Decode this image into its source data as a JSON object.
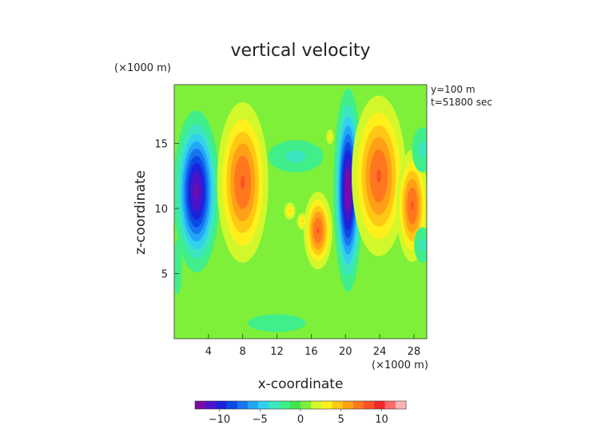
{
  "chart_data": {
    "type": "heatmap",
    "title": "vertical velocity",
    "xlabel": "x-coordinate",
    "ylabel": "z-coordinate",
    "x_unit": "(×1000 m)",
    "y_unit": "(×1000 m)",
    "annotations": [
      "y=100 m",
      "t=51800 sec"
    ],
    "xlim": [
      0,
      29.5
    ],
    "ylim": [
      0,
      19.5
    ],
    "x_ticks": [
      4,
      8,
      12,
      16,
      20,
      24,
      28
    ],
    "y_ticks": [
      5,
      10,
      15
    ],
    "colorbar": {
      "min": -13,
      "max": 13,
      "ticks": [
        -10,
        -5,
        0,
        5,
        10
      ],
      "colors": [
        "#7a0aa8",
        "#4b14c8",
        "#1c22dc",
        "#0a4ae6",
        "#1676f0",
        "#22a6f6",
        "#33d0ee",
        "#3ce6c0",
        "#40ee8a",
        "#3ee64e",
        "#7ef03a",
        "#d2f82c",
        "#fff01c",
        "#ffc814",
        "#ffa016",
        "#ff781e",
        "#ff5028",
        "#f02828",
        "#ff6a6a",
        "#ffb4b4"
      ]
    },
    "features": [
      {
        "x": 2.6,
        "z": 11.3,
        "value": -12,
        "sx": 1.3,
        "sz": 3.0
      },
      {
        "x": 8.0,
        "z": 12.0,
        "value": 8,
        "sx": 1.6,
        "sz": 3.3
      },
      {
        "x": 20.3,
        "z": 11.4,
        "value": -13,
        "sx": 0.8,
        "sz": 3.7
      },
      {
        "x": 23.9,
        "z": 12.5,
        "value": 8,
        "sx": 1.7,
        "sz": 3.3
      },
      {
        "x": 27.8,
        "z": 10.2,
        "value": 8,
        "sx": 1.0,
        "sz": 2.3
      },
      {
        "x": 16.8,
        "z": 8.3,
        "value": 8,
        "sx": 0.9,
        "sz": 1.6
      },
      {
        "x": 13.5,
        "z": 9.8,
        "value": 4,
        "sx": 0.45,
        "sz": 0.45
      },
      {
        "x": 15.0,
        "z": 9.0,
        "value": 4,
        "sx": 0.45,
        "sz": 0.45
      },
      {
        "x": 18.2,
        "z": 15.5,
        "value": 3,
        "sx": 0.35,
        "sz": 0.45
      },
      {
        "x": 14.2,
        "z": 14.0,
        "value": -3,
        "sx": 2.6,
        "sz": 1.0
      },
      {
        "x": 29.0,
        "z": 14.5,
        "value": -3,
        "sx": 1.0,
        "sz": 1.4
      },
      {
        "x": 29.0,
        "z": 7.2,
        "value": -3,
        "sx": 0.8,
        "sz": 1.1
      },
      {
        "x": 0.4,
        "z": 5.5,
        "value": -2,
        "sx": 0.6,
        "sz": 2.5
      },
      {
        "x": 12.0,
        "z": 1.2,
        "value": -2,
        "sx": 4.0,
        "sz": 0.8
      }
    ]
  }
}
